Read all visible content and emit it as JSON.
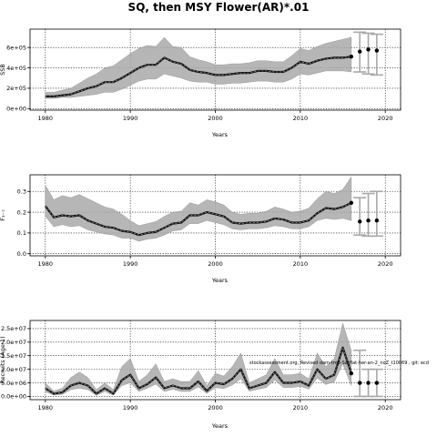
{
  "figure": {
    "title": "SQ, then MSY Flower(AR)*.01",
    "watermark": "stockassessment.org, Revised dam-tmb-Sarflat-her-an-2_noZ_t10069 , git: ecd"
  },
  "chart_data": [
    {
      "type": "line",
      "xlabel": "Years",
      "ylabel": "SSB",
      "xlim": [
        1978.2,
        2021.8
      ],
      "ylim": [
        -15000,
        780000
      ],
      "x_ticks": [
        1980,
        1990,
        2000,
        2010,
        2020
      ],
      "x_tick_labels": [
        "1980",
        "1990",
        "2000",
        "2010",
        "2020"
      ],
      "y_ticks": [
        0,
        200000,
        400000,
        600000
      ],
      "y_tick_labels": [
        "0e+00",
        "2e+05",
        "4e+05",
        "6e+05"
      ],
      "grid": true,
      "series": [
        {
          "x": [
            1980,
            1981,
            1982,
            1983,
            1984,
            1985,
            1986,
            1987,
            1988,
            1989,
            1990,
            1991,
            1992,
            1993,
            1994,
            1995,
            1996,
            1997,
            1998,
            1999,
            2000,
            2001,
            2002,
            2003,
            2004,
            2005,
            2006,
            2007,
            2008,
            2009,
            2010,
            2011,
            2012,
            2013,
            2014,
            2015,
            2016
          ],
          "y": [
            120000,
            120000,
            130000,
            140000,
            170000,
            200000,
            220000,
            260000,
            260000,
            300000,
            350000,
            400000,
            430000,
            430000,
            500000,
            460000,
            440000,
            380000,
            360000,
            350000,
            330000,
            330000,
            340000,
            350000,
            350000,
            370000,
            370000,
            360000,
            360000,
            400000,
            460000,
            440000,
            470000,
            490000,
            500000,
            500000,
            510000
          ],
          "lower": [
            100000,
            100000,
            110000,
            110000,
            120000,
            130000,
            140000,
            160000,
            160000,
            190000,
            230000,
            270000,
            290000,
            290000,
            340000,
            320000,
            300000,
            270000,
            260000,
            260000,
            240000,
            240000,
            250000,
            250000,
            260000,
            270000,
            270000,
            260000,
            260000,
            290000,
            340000,
            330000,
            350000,
            370000,
            370000,
            370000,
            360000
          ],
          "upper": [
            160000,
            160000,
            180000,
            200000,
            250000,
            300000,
            340000,
            400000,
            420000,
            480000,
            540000,
            590000,
            620000,
            610000,
            700000,
            610000,
            600000,
            510000,
            480000,
            460000,
            430000,
            430000,
            440000,
            440000,
            450000,
            470000,
            470000,
            460000,
            460000,
            520000,
            590000,
            570000,
            610000,
            640000,
            660000,
            680000,
            700000
          ]
        }
      ],
      "forecast": {
        "x": [
          2016,
          2017,
          2018,
          2019
        ],
        "y": [
          510000,
          560000,
          580000,
          570000
        ],
        "lower": [
          null,
          360000,
          340000,
          330000
        ],
        "upper": [
          null,
          750000,
          740000,
          730000
        ]
      }
    },
    {
      "type": "line",
      "xlabel": "Years",
      "ylabel": "F₃₋₇",
      "xlim": [
        1978.2,
        2021.8
      ],
      "ylim": [
        -0.01,
        0.38
      ],
      "x_ticks": [
        1980,
        1990,
        2000,
        2010,
        2020
      ],
      "x_tick_labels": [
        "1980",
        "1990",
        "2000",
        "2010",
        "2020"
      ],
      "y_ticks": [
        0.0,
        0.1,
        0.2,
        0.3
      ],
      "y_tick_labels": [
        "0.0",
        "0.1",
        "0.2",
        "0.3"
      ],
      "grid": true,
      "series": [
        {
          "x": [
            1980,
            1981,
            1982,
            1983,
            1984,
            1985,
            1986,
            1987,
            1988,
            1989,
            1990,
            1991,
            1992,
            1993,
            1994,
            1995,
            1996,
            1997,
            1998,
            1999,
            2000,
            2001,
            2002,
            2003,
            2004,
            2005,
            2006,
            2007,
            2008,
            2009,
            2010,
            2011,
            2012,
            2013,
            2014,
            2015,
            2016
          ],
          "y": [
            0.23,
            0.175,
            0.185,
            0.18,
            0.185,
            0.16,
            0.145,
            0.13,
            0.125,
            0.11,
            0.105,
            0.09,
            0.1,
            0.105,
            0.125,
            0.145,
            0.15,
            0.185,
            0.185,
            0.2,
            0.19,
            0.18,
            0.15,
            0.145,
            0.15,
            0.15,
            0.155,
            0.17,
            0.165,
            0.15,
            0.15,
            0.16,
            0.195,
            0.22,
            0.215,
            0.225,
            0.245
          ],
          "lower": [
            0.18,
            0.13,
            0.14,
            0.13,
            0.135,
            0.115,
            0.105,
            0.095,
            0.09,
            0.075,
            0.075,
            0.06,
            0.07,
            0.075,
            0.09,
            0.11,
            0.115,
            0.145,
            0.145,
            0.16,
            0.15,
            0.14,
            0.12,
            0.115,
            0.12,
            0.12,
            0.125,
            0.135,
            0.13,
            0.12,
            0.12,
            0.13,
            0.16,
            0.17,
            0.165,
            0.17,
            0.16
          ],
          "upper": [
            0.33,
            0.26,
            0.28,
            0.27,
            0.285,
            0.265,
            0.245,
            0.225,
            0.215,
            0.19,
            0.16,
            0.135,
            0.145,
            0.155,
            0.18,
            0.2,
            0.205,
            0.245,
            0.235,
            0.26,
            0.25,
            0.235,
            0.2,
            0.19,
            0.195,
            0.195,
            0.205,
            0.225,
            0.215,
            0.2,
            0.205,
            0.22,
            0.265,
            0.3,
            0.29,
            0.31,
            0.37
          ]
        }
      ],
      "forecast": {
        "x": [
          2016,
          2017,
          2018,
          2019
        ],
        "y": [
          0.245,
          0.155,
          0.16,
          0.16
        ],
        "lower": [
          null,
          0.09,
          0.085,
          0.085
        ],
        "upper": [
          null,
          0.27,
          0.29,
          0.3
        ]
      }
    },
    {
      "type": "line",
      "xlabel": "Years",
      "ylabel": "Recruits (Age 1)",
      "xlim": [
        1978.2,
        2021.8
      ],
      "ylim": [
        -1200000,
        28000000
      ],
      "x_ticks": [
        1980,
        1990,
        2000,
        2010,
        2020
      ],
      "x_tick_labels": [
        "1980",
        "1990",
        "2000",
        "2010",
        "2020"
      ],
      "y_ticks": [
        0,
        5000000,
        10000000,
        15000000,
        20000000,
        25000000
      ],
      "y_tick_labels": [
        "0.0e+00",
        "5.0e+06",
        "1.0e+07",
        "1.5e+07",
        "2.0e+07",
        "2.5e+07"
      ],
      "grid": true,
      "series": [
        {
          "x": [
            1980,
            1981,
            1982,
            1983,
            1984,
            1985,
            1986,
            1987,
            1988,
            1989,
            1990,
            1991,
            1992,
            1993,
            1994,
            1995,
            1996,
            1997,
            1998,
            1999,
            2000,
            2001,
            2002,
            2003,
            2004,
            2005,
            2006,
            2007,
            2008,
            2009,
            2010,
            2011,
            2012,
            2013,
            2014,
            2015,
            2016
          ],
          "y": [
            3000000,
            1000000,
            1500000,
            4000000,
            5000000,
            4000000,
            1000000,
            3000000,
            1000000,
            6000000,
            8000000,
            3000000,
            4500000,
            7000000,
            3000000,
            4000000,
            3000000,
            3000000,
            5500000,
            2000000,
            5000000,
            4500000,
            6500000,
            10000000,
            3000000,
            4000000,
            5000000,
            9000000,
            5000000,
            5000000,
            5500000,
            4000000,
            10000000,
            6500000,
            8000000,
            18000000,
            8500000
          ],
          "lower": [
            1700000,
            500000,
            700000,
            2500000,
            3000000,
            2500000,
            400000,
            1800000,
            500000,
            4000000,
            5000000,
            1800000,
            3000000,
            4500000,
            1800000,
            2600000,
            1800000,
            1800000,
            3500000,
            1100000,
            3200000,
            2900000,
            4200000,
            6500000,
            1900000,
            2600000,
            3300000,
            6000000,
            3300000,
            3300000,
            3700000,
            2700000,
            6800000,
            4400000,
            5400000,
            12000000,
            4000000
          ],
          "upper": [
            5000000,
            2000000,
            3000000,
            7000000,
            9000000,
            7000000,
            2500000,
            5000000,
            2500000,
            11000000,
            14000000,
            5500000,
            8000000,
            12000000,
            5500000,
            6500000,
            5500000,
            5500000,
            9500000,
            4000000,
            8500000,
            7500000,
            11000000,
            16000000,
            5000000,
            6500000,
            8000000,
            14000000,
            8000000,
            8000000,
            8500000,
            6500000,
            16000000,
            11000000,
            14000000,
            27000000,
            17000000
          ]
        }
      ],
      "forecast": {
        "x": [
          2016,
          2017,
          2018,
          2019
        ],
        "y": [
          8500000,
          5000000,
          5000000,
          5000000
        ],
        "lower": [
          null,
          0,
          0,
          0
        ],
        "upper": [
          null,
          17000000,
          10000000,
          10000000
        ]
      }
    }
  ]
}
